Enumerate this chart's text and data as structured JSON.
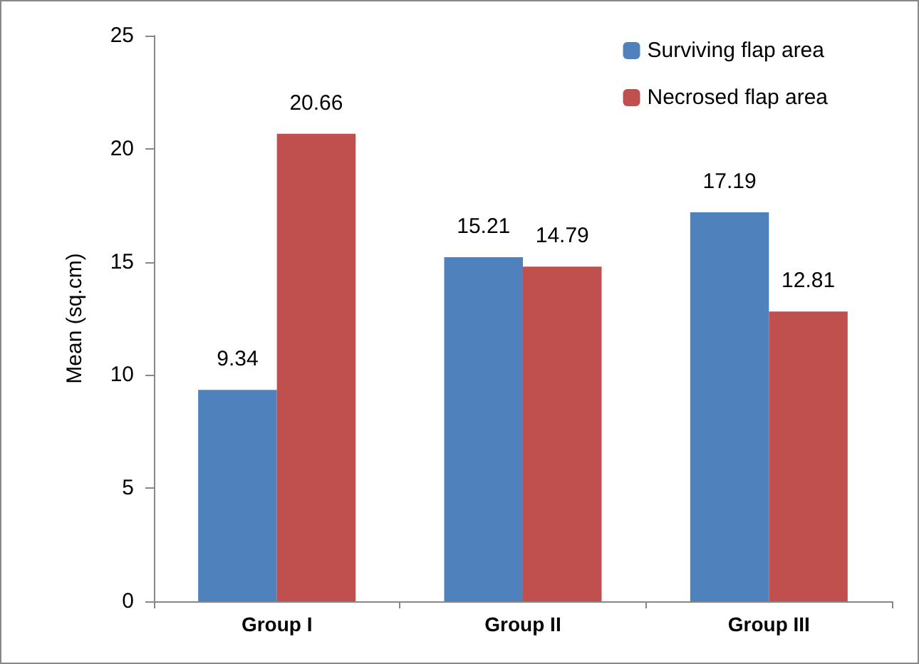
{
  "chart_data": {
    "type": "bar",
    "ylabel": "Mean (sq.cm)",
    "categories": [
      "Group I",
      "Group II",
      "Group III"
    ],
    "series": [
      {
        "name": "Surviving flap area",
        "color": "#4f81bd",
        "values": [
          9.34,
          15.21,
          17.19
        ]
      },
      {
        "name": "Necrosed flap area",
        "color": "#c0504d",
        "values": [
          20.66,
          14.79,
          12.81
        ]
      }
    ],
    "ylim": [
      0,
      25
    ],
    "yticks": [
      0,
      5,
      10,
      15,
      20,
      25
    ],
    "grid": false,
    "legend": "top right",
    "data_labels": true
  }
}
